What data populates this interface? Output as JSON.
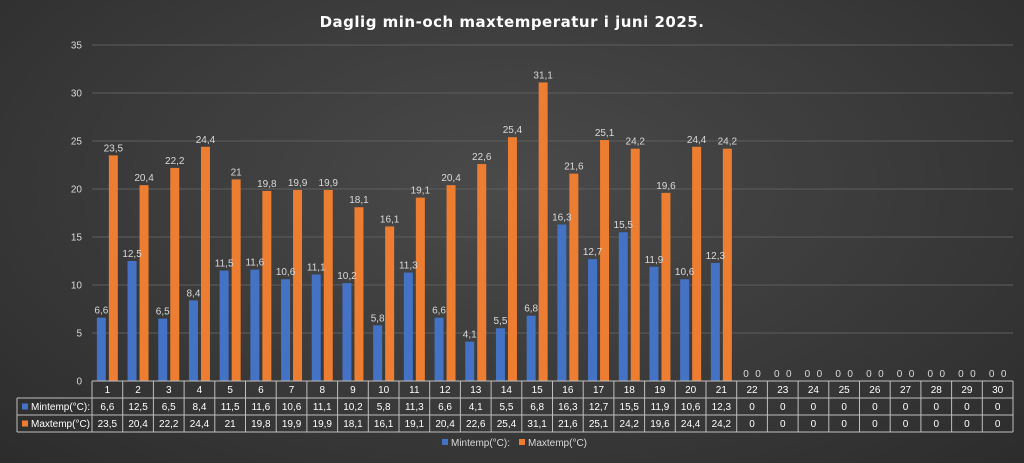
{
  "chart_data": {
    "type": "bar",
    "title": "Daglig min-och maxtemperatur i juni 2025.",
    "xlabel": "",
    "ylabel": "",
    "ylim": [
      0,
      35
    ],
    "yticks": [
      0,
      5,
      10,
      15,
      20,
      25,
      30,
      35
    ],
    "grid": true,
    "legend": "bottom",
    "data_table": true,
    "categories": [
      "1",
      "2",
      "3",
      "4",
      "5",
      "6",
      "7",
      "8",
      "9",
      "10",
      "11",
      "12",
      "13",
      "14",
      "15",
      "16",
      "17",
      "18",
      "19",
      "20",
      "21",
      "22",
      "23",
      "24",
      "25",
      "26",
      "27",
      "28",
      "29",
      "30"
    ],
    "series": [
      {
        "name": "Mintemp(°C):",
        "color": "#4472c4",
        "values": [
          6.6,
          12.5,
          6.5,
          8.4,
          11.5,
          11.6,
          10.6,
          11.1,
          10.2,
          5.8,
          11.3,
          6.6,
          4.1,
          5.5,
          6.8,
          16.3,
          12.7,
          15.5,
          11.9,
          10.6,
          12.3,
          0,
          0,
          0,
          0,
          0,
          0,
          0,
          0,
          0
        ],
        "labels": [
          "6,6",
          "12,5",
          "6,5",
          "8,4",
          "11,5",
          "11,6",
          "10,6",
          "11,1",
          "10,2",
          "5,8",
          "11,3",
          "6,6",
          "4,1",
          "5,5",
          "6,8",
          "16,3",
          "12,7",
          "15,5",
          "11,9",
          "10,6",
          "12,3",
          "0",
          "0",
          "0",
          "0",
          "0",
          "0",
          "0",
          "0",
          "0"
        ]
      },
      {
        "name": "Maxtemp(°C)",
        "color": "#ed7d31",
        "values": [
          23.5,
          20.4,
          22.2,
          24.4,
          21,
          19.8,
          19.9,
          19.9,
          18.1,
          16.1,
          19.1,
          20.4,
          22.6,
          25.4,
          31.1,
          21.6,
          25.1,
          24.2,
          19.6,
          24.4,
          24.2,
          0,
          0,
          0,
          0,
          0,
          0,
          0,
          0,
          0
        ],
        "labels": [
          "23,5",
          "20,4",
          "22,2",
          "24,4",
          "21",
          "19,8",
          "19,9",
          "19,9",
          "18,1",
          "16,1",
          "19,1",
          "20,4",
          "22,6",
          "25,4",
          "31,1",
          "21,6",
          "25,1",
          "24,2",
          "19,6",
          "24,4",
          "24,2",
          "0",
          "0",
          "0",
          "0",
          "0",
          "0",
          "0",
          "0",
          "0"
        ]
      }
    ]
  }
}
